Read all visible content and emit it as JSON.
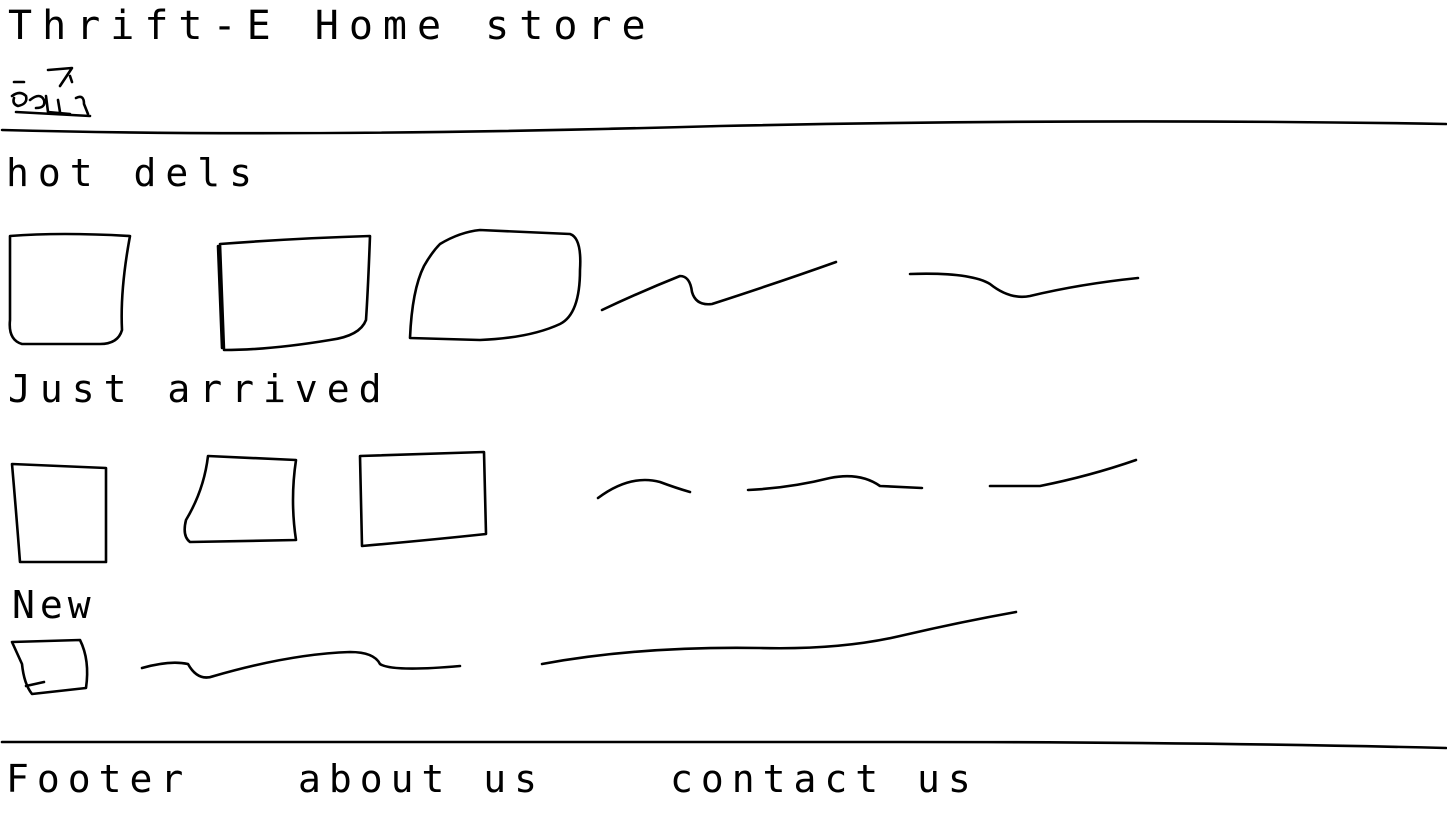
{
  "header": {
    "title": "Thrift-E Home store"
  },
  "sections": [
    {
      "heading": "hot dels"
    },
    {
      "heading": "Just arrived"
    },
    {
      "heading": "New"
    }
  ],
  "footer": {
    "label": "Footer",
    "about": "about us",
    "contact": "contact us"
  },
  "colors": {
    "ink": "#000000",
    "background": "#ffffff"
  }
}
